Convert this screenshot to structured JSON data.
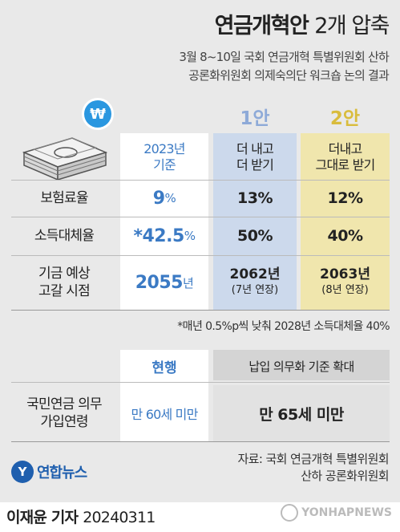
{
  "header": {
    "title_bold": "연금개혁안",
    "title_light": "2개 압축",
    "subtitle_line1": "3월 8~10일 국회 연금개혁 특별위원회 산하",
    "subtitle_line2": "공론화위원회 의제숙의단 워크숍 논의 결과"
  },
  "icon": {
    "coin_symbol": "₩",
    "coin_icon": "won-coin-icon",
    "money_icon": "money-stack-icon"
  },
  "table": {
    "columns": [
      {
        "tag": "",
        "line1": "2023년",
        "line2": "기준"
      },
      {
        "tag": "1안",
        "line1": "더 내고",
        "line2": "더 받기"
      },
      {
        "tag": "2안",
        "line1": "더내고",
        "line2": "그대로 받기"
      }
    ],
    "rows": [
      {
        "label_line1": "보험료율",
        "label_line2": "",
        "current_value": "9",
        "current_unit": "%",
        "plan1": "13%",
        "plan2": "12%"
      },
      {
        "label_line1": "소득대체율",
        "label_line2": "",
        "current_value": "*42.5",
        "current_unit": "%",
        "plan1": "50%",
        "plan2": "40%"
      },
      {
        "label_line1": "기금 예상",
        "label_line2": "고갈 시점",
        "current_value": "2055",
        "current_unit": "년",
        "plan1": "2062년",
        "plan1_note": "(7년 연장)",
        "plan2": "2063년",
        "plan2_note": "(8년 연장)"
      }
    ],
    "note": "*매년 0.5%p씩 낮춰 2028년 소득대체율 40%"
  },
  "table2": {
    "head_current": "현행",
    "head_proposal": "납입 의무화 기준 확대",
    "label_line1": "국민연금 의무",
    "label_line2": "가입연령",
    "current_value": "만 60세 미만",
    "proposal_value": "만 65세 미만"
  },
  "source": {
    "line1": "자료: 국회 연금개혁 특별위원회",
    "line2": "산하 공론화위원회"
  },
  "logo": {
    "mark": "Y",
    "text": "연합뉴스"
  },
  "footer": {
    "reporter": "이재윤 기자",
    "date": "20240311",
    "watermark": "YONHAPNEWS"
  },
  "colors": {
    "blue": "#3b7ac4",
    "plan1_bg": "#ccd9ec",
    "plan2_bg": "#f0e6ad",
    "plan1_tag": "#8eaad8",
    "plan2_tag": "#d9bc3c"
  }
}
